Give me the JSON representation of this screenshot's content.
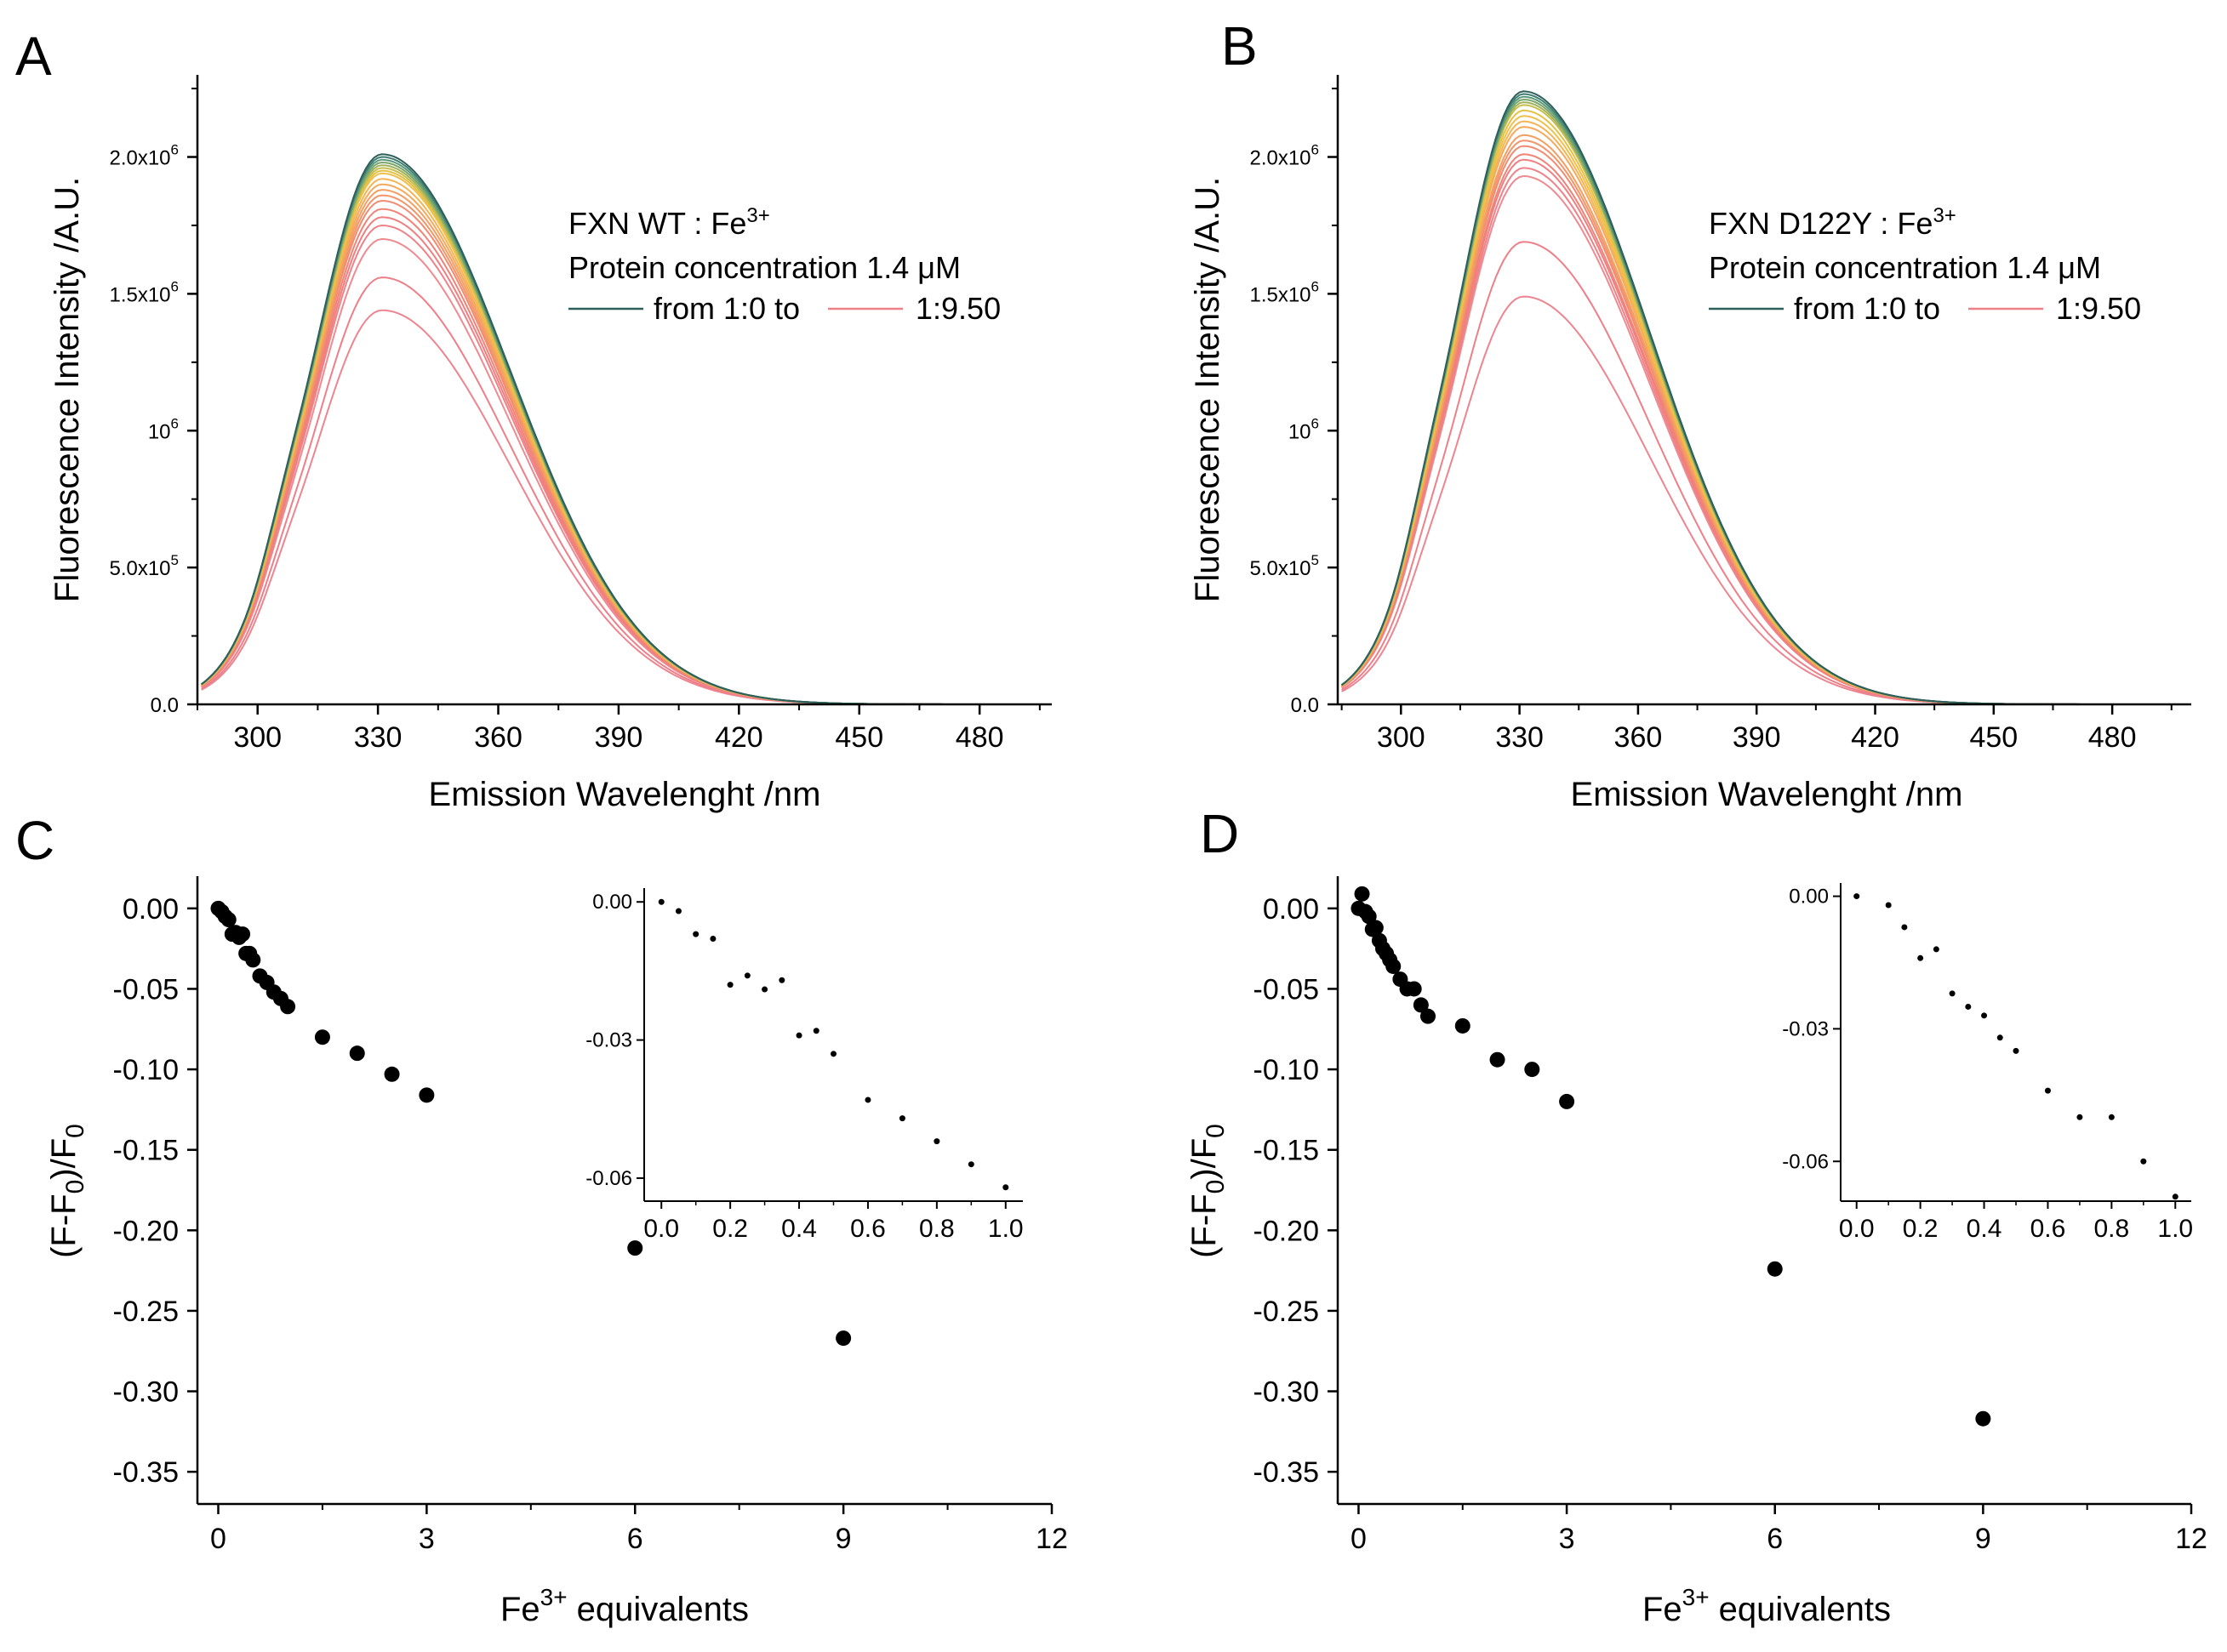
{
  "figure": {
    "panels": [
      {
        "letter": "A"
      },
      {
        "letter": "B"
      },
      {
        "letter": "C"
      },
      {
        "letter": "D"
      }
    ],
    "legend": {
      "ratio_start": "from 1:0 to",
      "ratio_end": "1:9.50"
    }
  },
  "chart_data": [
    {
      "panel": "A",
      "type": "line",
      "title": "",
      "xlabel": "Emission Wavelenght /nm",
      "ylabel": "Fluorescence Intensity /A.U.",
      "xlim": [
        285,
        498
      ],
      "ylim": [
        0,
        2300000
      ],
      "xticks": [
        300,
        330,
        360,
        390,
        420,
        450,
        480
      ],
      "yticks": [
        {
          "value": 0,
          "mantissa": "0.0",
          "exp": ""
        },
        {
          "value": 500000,
          "mantissa": "5.0x10",
          "exp": "5"
        },
        {
          "value": 1000000,
          "mantissa": "10",
          "exp": "6"
        },
        {
          "value": 1500000,
          "mantissa": "1.5x10",
          "exp": "6"
        },
        {
          "value": 2000000,
          "mantissa": "2.0x10",
          "exp": "6"
        }
      ],
      "legend_lines": [
        {
          "prefix": "FXN WT : Fe",
          "sup": "3+"
        },
        {
          "prefix": "Protein concentration 1.4 ",
          "sup": "",
          "suffix": "μM"
        }
      ],
      "peak_wavelength": 331,
      "series_peaks": [
        2010000,
        2000000,
        1990000,
        1980000,
        1970000,
        1960000,
        1950000,
        1940000,
        1920000,
        1900000,
        1880000,
        1860000,
        1840000,
        1810000,
        1780000,
        1750000,
        1700000,
        1560000,
        1440000
      ],
      "series_colors": [
        "#2f5f5a",
        "#3f7e72",
        "#5a9a7a",
        "#7ba56a",
        "#9eb35d",
        "#c9bd4e",
        "#e5c146",
        "#f0c04c",
        "#f4b554",
        "#f5a95a",
        "#f49f62",
        "#f3956a",
        "#f28b71",
        "#f08378",
        "#ef7f80",
        "#ee8288",
        "#ee8a90",
        "#ee7f88",
        "#ed8590"
      ]
    },
    {
      "panel": "B",
      "type": "line",
      "title": "",
      "xlabel": "Emission Wavelenght /nm",
      "ylabel": "Fluorescence Intensity /A.U.",
      "xlim": [
        284,
        500
      ],
      "ylim": [
        0,
        2300000
      ],
      "xticks": [
        300,
        330,
        360,
        390,
        420,
        450,
        480
      ],
      "yticks": [
        {
          "value": 0,
          "mantissa": "0.0",
          "exp": ""
        },
        {
          "value": 500000,
          "mantissa": "5.0x10",
          "exp": "5"
        },
        {
          "value": 1000000,
          "mantissa": "10",
          "exp": "6"
        },
        {
          "value": 1500000,
          "mantissa": "1.5x10",
          "exp": "6"
        },
        {
          "value": 2000000,
          "mantissa": "2.0x10",
          "exp": "6"
        }
      ],
      "legend_lines": [
        {
          "prefix": "FXN D122Y : Fe",
          "sup": "3+"
        },
        {
          "prefix": "Protein concentration 1.4 ",
          "sup": "",
          "suffix": "μM"
        }
      ],
      "peak_wavelength": 331,
      "series_peaks": [
        2240000,
        2230000,
        2220000,
        2210000,
        2200000,
        2190000,
        2170000,
        2150000,
        2130000,
        2110000,
        2080000,
        2060000,
        2040000,
        2010000,
        1990000,
        1960000,
        1930000,
        1690000,
        1490000
      ],
      "series_colors": [
        "#2f5f5a",
        "#3f7e72",
        "#5a9a7a",
        "#7ba56a",
        "#9eb35d",
        "#c9bd4e",
        "#e5c146",
        "#f0c04c",
        "#f4b554",
        "#f5a95a",
        "#f49f62",
        "#f3956a",
        "#f28b71",
        "#f08378",
        "#ef7f80",
        "#ee8288",
        "#ee8a90",
        "#ee7f88",
        "#ed8590"
      ]
    },
    {
      "panel": "C",
      "type": "scatter",
      "title": "",
      "xlabel_base": "Fe",
      "xlabel_sup": "3+",
      "xlabel_rest": " equivalents",
      "ylabel_parts": [
        "(F-F",
        "0",
        ")/F",
        "0"
      ],
      "xlim": [
        -0.3,
        12
      ],
      "ylim": [
        -0.37,
        0.02
      ],
      "xticks": [
        "0",
        "3",
        "6",
        "9",
        "12"
      ],
      "yticks": [
        "0.00",
        "-0.05",
        "-0.10",
        "-0.15",
        "-0.20",
        "-0.25",
        "-0.30",
        "-0.35"
      ],
      "points": [
        {
          "x": 0,
          "y": 0.0
        },
        {
          "x": 0.05,
          "y": -0.002
        },
        {
          "x": 0.1,
          "y": -0.005
        },
        {
          "x": 0.15,
          "y": -0.007
        },
        {
          "x": 0.2,
          "y": -0.016
        },
        {
          "x": 0.25,
          "y": -0.015
        },
        {
          "x": 0.3,
          "y": -0.018
        },
        {
          "x": 0.35,
          "y": -0.016
        },
        {
          "x": 0.4,
          "y": -0.028
        },
        {
          "x": 0.45,
          "y": -0.028
        },
        {
          "x": 0.5,
          "y": -0.032
        },
        {
          "x": 0.6,
          "y": -0.042
        },
        {
          "x": 0.7,
          "y": -0.046
        },
        {
          "x": 0.8,
          "y": -0.052
        },
        {
          "x": 0.9,
          "y": -0.056
        },
        {
          "x": 1.0,
          "y": -0.061
        },
        {
          "x": 1.5,
          "y": -0.08
        },
        {
          "x": 2.0,
          "y": -0.09
        },
        {
          "x": 2.5,
          "y": -0.103
        },
        {
          "x": 3.0,
          "y": -0.116
        },
        {
          "x": 6.0,
          "y": -0.211
        },
        {
          "x": 9.0,
          "y": -0.267
        }
      ],
      "inset": {
        "xlim": [
          -0.05,
          1.05
        ],
        "ylim": [
          -0.065,
          0.003
        ],
        "xticks": [
          "0.0",
          "0.2",
          "0.4",
          "0.6",
          "0.8",
          "1.0"
        ],
        "yticks": [
          "0.00",
          "-0.03",
          "-0.06"
        ],
        "points": [
          {
            "x": 0,
            "y": 0.0
          },
          {
            "x": 0.05,
            "y": -0.002
          },
          {
            "x": 0.1,
            "y": -0.007
          },
          {
            "x": 0.15,
            "y": -0.008
          },
          {
            "x": 0.2,
            "y": -0.018
          },
          {
            "x": 0.25,
            "y": -0.016
          },
          {
            "x": 0.3,
            "y": -0.019
          },
          {
            "x": 0.35,
            "y": -0.017
          },
          {
            "x": 0.4,
            "y": -0.029
          },
          {
            "x": 0.45,
            "y": -0.028
          },
          {
            "x": 0.5,
            "y": -0.033
          },
          {
            "x": 0.6,
            "y": -0.043
          },
          {
            "x": 0.7,
            "y": -0.047
          },
          {
            "x": 0.8,
            "y": -0.052
          },
          {
            "x": 0.9,
            "y": -0.057
          },
          {
            "x": 1.0,
            "y": -0.062
          }
        ]
      }
    },
    {
      "panel": "D",
      "type": "scatter",
      "title": "",
      "xlabel_base": "Fe",
      "xlabel_sup": "3+",
      "xlabel_rest": " equivalents",
      "ylabel_parts": [
        "(F-F",
        "0",
        ")/F",
        "0"
      ],
      "xlim": [
        -0.3,
        12
      ],
      "ylim": [
        -0.37,
        0.02
      ],
      "xticks": [
        "0",
        "3",
        "6",
        "9",
        "12"
      ],
      "yticks": [
        "0.00",
        "-0.05",
        "-0.10",
        "-0.15",
        "-0.20",
        "-0.25",
        "-0.30",
        "-0.35"
      ],
      "points": [
        {
          "x": 0,
          "y": 0.0
        },
        {
          "x": 0.05,
          "y": 0.009
        },
        {
          "x": 0.1,
          "y": -0.002
        },
        {
          "x": 0.15,
          "y": -0.005
        },
        {
          "x": 0.2,
          "y": -0.013
        },
        {
          "x": 0.25,
          "y": -0.012
        },
        {
          "x": 0.3,
          "y": -0.02
        },
        {
          "x": 0.35,
          "y": -0.025
        },
        {
          "x": 0.4,
          "y": -0.028
        },
        {
          "x": 0.45,
          "y": -0.032
        },
        {
          "x": 0.5,
          "y": -0.036
        },
        {
          "x": 0.6,
          "y": -0.044
        },
        {
          "x": 0.7,
          "y": -0.05
        },
        {
          "x": 0.8,
          "y": -0.05
        },
        {
          "x": 0.9,
          "y": -0.06
        },
        {
          "x": 1.0,
          "y": -0.067
        },
        {
          "x": 1.5,
          "y": -0.073
        },
        {
          "x": 2.0,
          "y": -0.094
        },
        {
          "x": 2.5,
          "y": -0.1
        },
        {
          "x": 3.0,
          "y": -0.12
        },
        {
          "x": 6.0,
          "y": -0.224
        },
        {
          "x": 9.0,
          "y": -0.317
        }
      ],
      "inset": {
        "xlim": [
          -0.05,
          1.05
        ],
        "ylim": [
          -0.069,
          0.003
        ],
        "xticks": [
          "0.0",
          "0.2",
          "0.4",
          "0.6",
          "0.8",
          "1.0"
        ],
        "yticks": [
          "0.00",
          "-0.03",
          "-0.06"
        ],
        "points": [
          {
            "x": 0,
            "y": 0.0
          },
          {
            "x": 0.1,
            "y": -0.002
          },
          {
            "x": 0.15,
            "y": -0.007
          },
          {
            "x": 0.2,
            "y": -0.014
          },
          {
            "x": 0.25,
            "y": -0.012
          },
          {
            "x": 0.3,
            "y": -0.022
          },
          {
            "x": 0.35,
            "y": -0.025
          },
          {
            "x": 0.4,
            "y": -0.027
          },
          {
            "x": 0.45,
            "y": -0.032
          },
          {
            "x": 0.5,
            "y": -0.035
          },
          {
            "x": 0.6,
            "y": -0.044
          },
          {
            "x": 0.7,
            "y": -0.05
          },
          {
            "x": 0.8,
            "y": -0.05
          },
          {
            "x": 0.9,
            "y": -0.06
          },
          {
            "x": 1.0,
            "y": -0.068
          }
        ]
      }
    }
  ]
}
